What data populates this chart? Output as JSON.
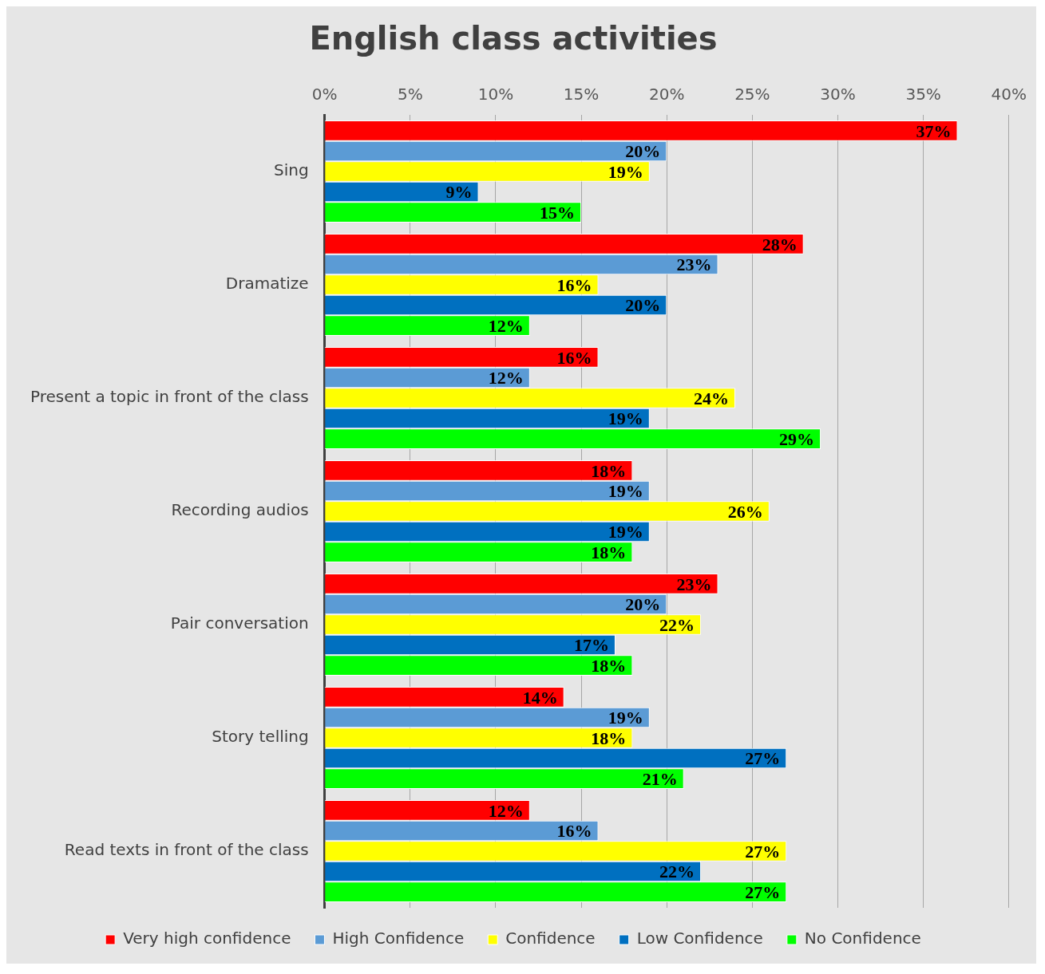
{
  "chart_data": {
    "type": "bar",
    "orientation": "horizontal",
    "title": "English class activities",
    "categories": [
      "Sing",
      "Dramatize",
      "Present a topic in front of the class",
      "Recording audios",
      "Pair conversation",
      "Story telling",
      "Read texts in front of the class"
    ],
    "series": [
      {
        "name": "Very high confidence",
        "color": "#ff0000",
        "values": [
          37,
          28,
          16,
          18,
          23,
          14,
          12
        ],
        "value_labels": [
          "37%",
          "28%",
          "16%",
          "18%",
          "23%",
          "14%",
          "12%"
        ]
      },
      {
        "name": "High Confidence",
        "color": "#5b9bd5",
        "values": [
          20,
          23,
          12,
          19,
          20,
          19,
          16
        ],
        "value_labels": [
          "20%",
          "23%",
          "12%",
          "19%",
          "20%",
          "19%",
          "16%"
        ]
      },
      {
        "name": "Confidence",
        "color": "#ffff00",
        "values": [
          19,
          16,
          24,
          26,
          22,
          18,
          27
        ],
        "value_labels": [
          "19%",
          "16%",
          "24%",
          "26%",
          "22%",
          "18%",
          "27%"
        ]
      },
      {
        "name": "Low Confidence",
        "color": "#0070c0",
        "values": [
          9,
          20,
          19,
          19,
          17,
          27,
          22
        ],
        "value_labels": [
          "9%",
          "20%",
          "19%",
          "19%",
          "17%",
          "27%",
          "22%"
        ]
      },
      {
        "name": "No Confidence",
        "color": "#00ff00",
        "values": [
          15,
          12,
          29,
          18,
          18,
          21,
          27
        ],
        "value_labels": [
          "15%",
          "12%",
          "29%",
          "18%",
          "18%",
          "21%",
          "27%"
        ]
      }
    ],
    "xlim": [
      0,
      40
    ],
    "xticks": [
      {
        "value": 0,
        "label": "0%"
      },
      {
        "value": 5,
        "label": "5%"
      },
      {
        "value": 10,
        "label": "10%"
      },
      {
        "value": 15,
        "label": "15%"
      },
      {
        "value": 20,
        "label": "20%"
      },
      {
        "value": 25,
        "label": "25%"
      },
      {
        "value": 30,
        "label": "30%"
      },
      {
        "value": 35,
        "label": "35%"
      },
      {
        "value": 40,
        "label": "40%"
      }
    ],
    "grid": "x",
    "legend": "bottom"
  }
}
